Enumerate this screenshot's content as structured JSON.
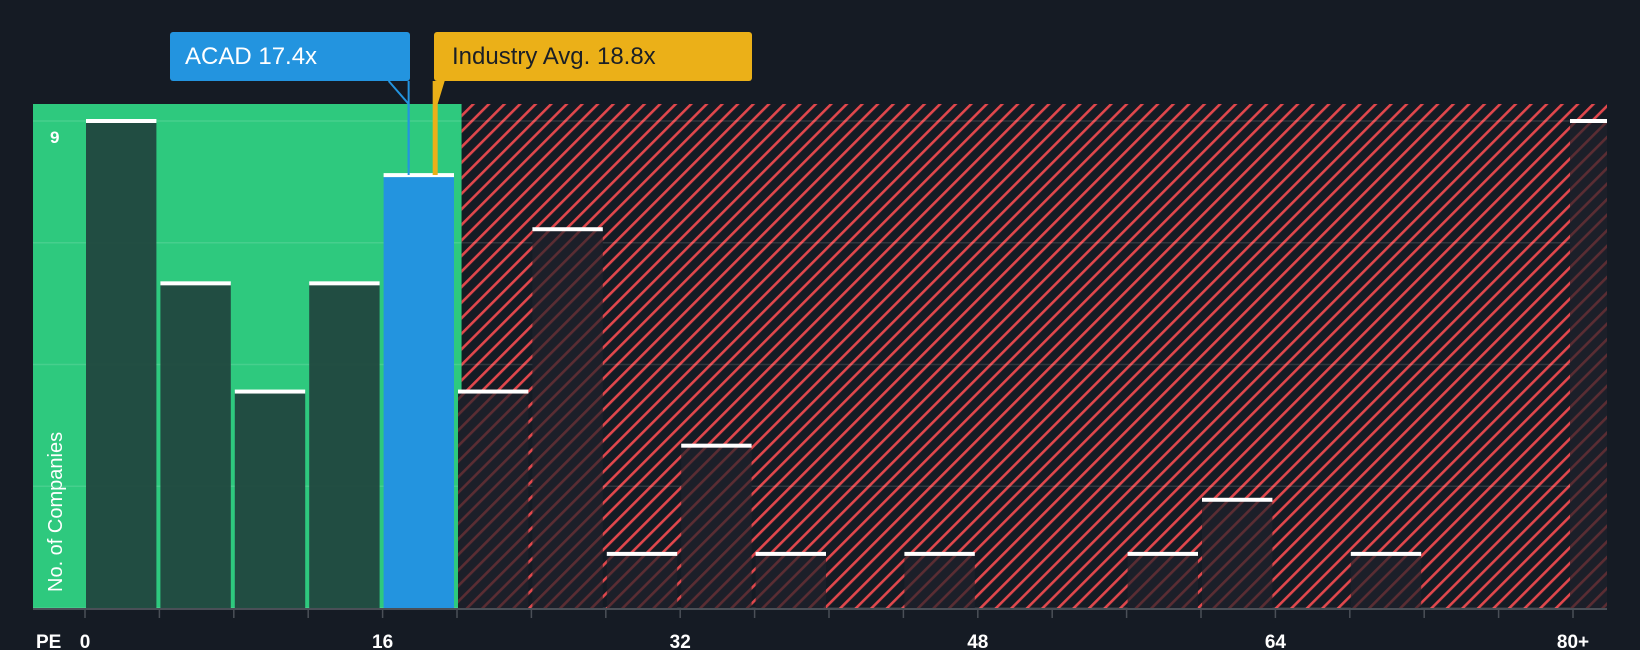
{
  "company": {
    "label": "ACAD 17.4x",
    "value": 17.4,
    "color": "#2394df"
  },
  "industry": {
    "label": "Industry Avg. 18.8x",
    "value": 18.8,
    "color": "#ebb018"
  },
  "axis": {
    "x_prefix": "PE",
    "x_ticks": [
      "0",
      "16",
      "32",
      "48",
      "64",
      "80+"
    ],
    "y_label": "No. of Companies",
    "y_top_label": "9"
  },
  "colors": {
    "background": "#151b24",
    "undervalued_zone": "#2ec97e",
    "overvalued_hatch": "#e0474c",
    "bar_in_green": "#21473f",
    "bar_in_red": "#1c1f29",
    "bar_top_marker": "#ffffff"
  },
  "chart_data": {
    "type": "bar",
    "title": "",
    "xlabel": "PE",
    "ylabel": "No. of Companies",
    "bin_width": 4,
    "categories": [
      "0-4",
      "4-8",
      "8-12",
      "12-16",
      "16-20",
      "20-24",
      "24-28",
      "28-32",
      "32-36",
      "36-40",
      "40-44",
      "44-48",
      "48-52",
      "52-56",
      "56-60",
      "60-64",
      "64-68",
      "68-72",
      "72-76",
      "76-80",
      "80+"
    ],
    "values": [
      9,
      6,
      4,
      6,
      8,
      4,
      7,
      1,
      3,
      1,
      0,
      1,
      0,
      0,
      1,
      2,
      0,
      1,
      0,
      0,
      9
    ],
    "highlight_bin": "16-20",
    "ylim": [
      0,
      9
    ],
    "x_ticks": [
      0,
      16,
      32,
      48,
      64,
      "80+"
    ],
    "annotations": [
      {
        "label": "ACAD 17.4x",
        "x": 17.4
      },
      {
        "label": "Industry Avg. 18.8x",
        "x": 18.8
      }
    ],
    "grid": true
  }
}
